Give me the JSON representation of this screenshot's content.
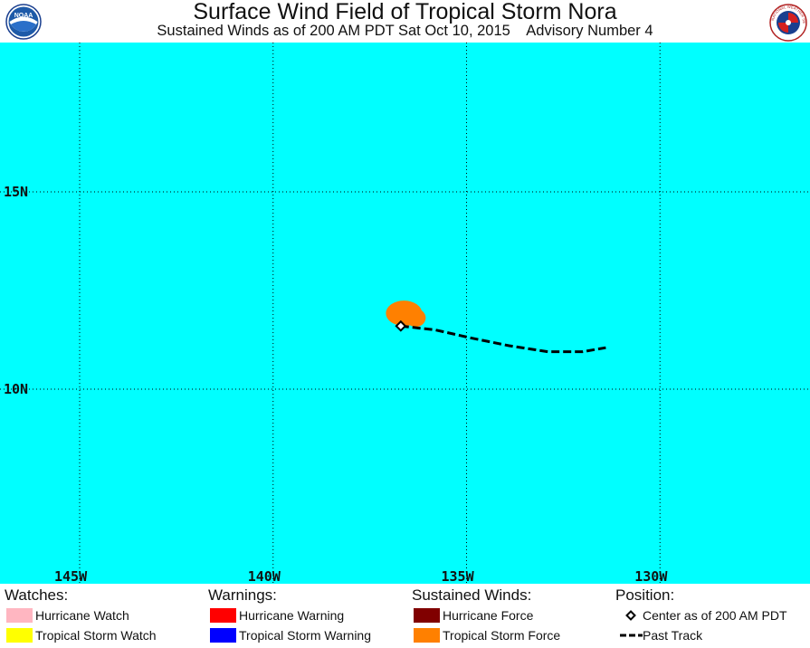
{
  "header": {
    "title": "Surface Wind Field of Tropical Storm Nora",
    "subtitle": "Sustained Winds as of 200 AM PDT Sat Oct 10, 2015    Advisory Number 4",
    "noaa_logo_text": "NOAA",
    "nws_logo_text": "NATIONAL WEATHER SERVICE"
  },
  "map": {
    "ocean_color": "#00FFFF",
    "grid_style": "dotted",
    "lat_labels": [
      "15N",
      "10N"
    ],
    "lon_labels": [
      "145W",
      "140W",
      "135W",
      "130W"
    ],
    "storm_center": {
      "lat": 11.6,
      "lon": -136.7
    },
    "past_track": [
      {
        "lat": 11.6,
        "lon": -136.7
      },
      {
        "lat": 11.5,
        "lon": -135.8
      },
      {
        "lat": 11.3,
        "lon": -134.9
      },
      {
        "lat": 11.1,
        "lon": -133.9
      },
      {
        "lat": 10.95,
        "lon": -132.9
      },
      {
        "lat": 10.95,
        "lon": -132.0
      },
      {
        "lat": 11.05,
        "lon": -131.4
      }
    ],
    "tropical_storm_wind_field": {
      "center_lat": 11.9,
      "center_lon": -136.5,
      "color": "#FF8000"
    }
  },
  "legend": {
    "watches": {
      "heading": "Watches:",
      "items": [
        {
          "label": "Hurricane Watch",
          "color": "#FFB6C1"
        },
        {
          "label": "Tropical Storm Watch",
          "color": "#FFFF00"
        }
      ]
    },
    "warnings": {
      "heading": "Warnings:",
      "items": [
        {
          "label": "Hurricane Warning",
          "color": "#FF0000"
        },
        {
          "label": "Tropical Storm Warning",
          "color": "#0000FF"
        }
      ]
    },
    "sustained_winds": {
      "heading": "Sustained Winds:",
      "items": [
        {
          "label": "Hurricane Force",
          "color": "#800000"
        },
        {
          "label": "Tropical Storm Force",
          "color": "#FF8000"
        }
      ]
    },
    "position": {
      "heading": "Position:",
      "center_label": "Center as of 200 AM PDT",
      "track_label": "Past Track"
    }
  }
}
